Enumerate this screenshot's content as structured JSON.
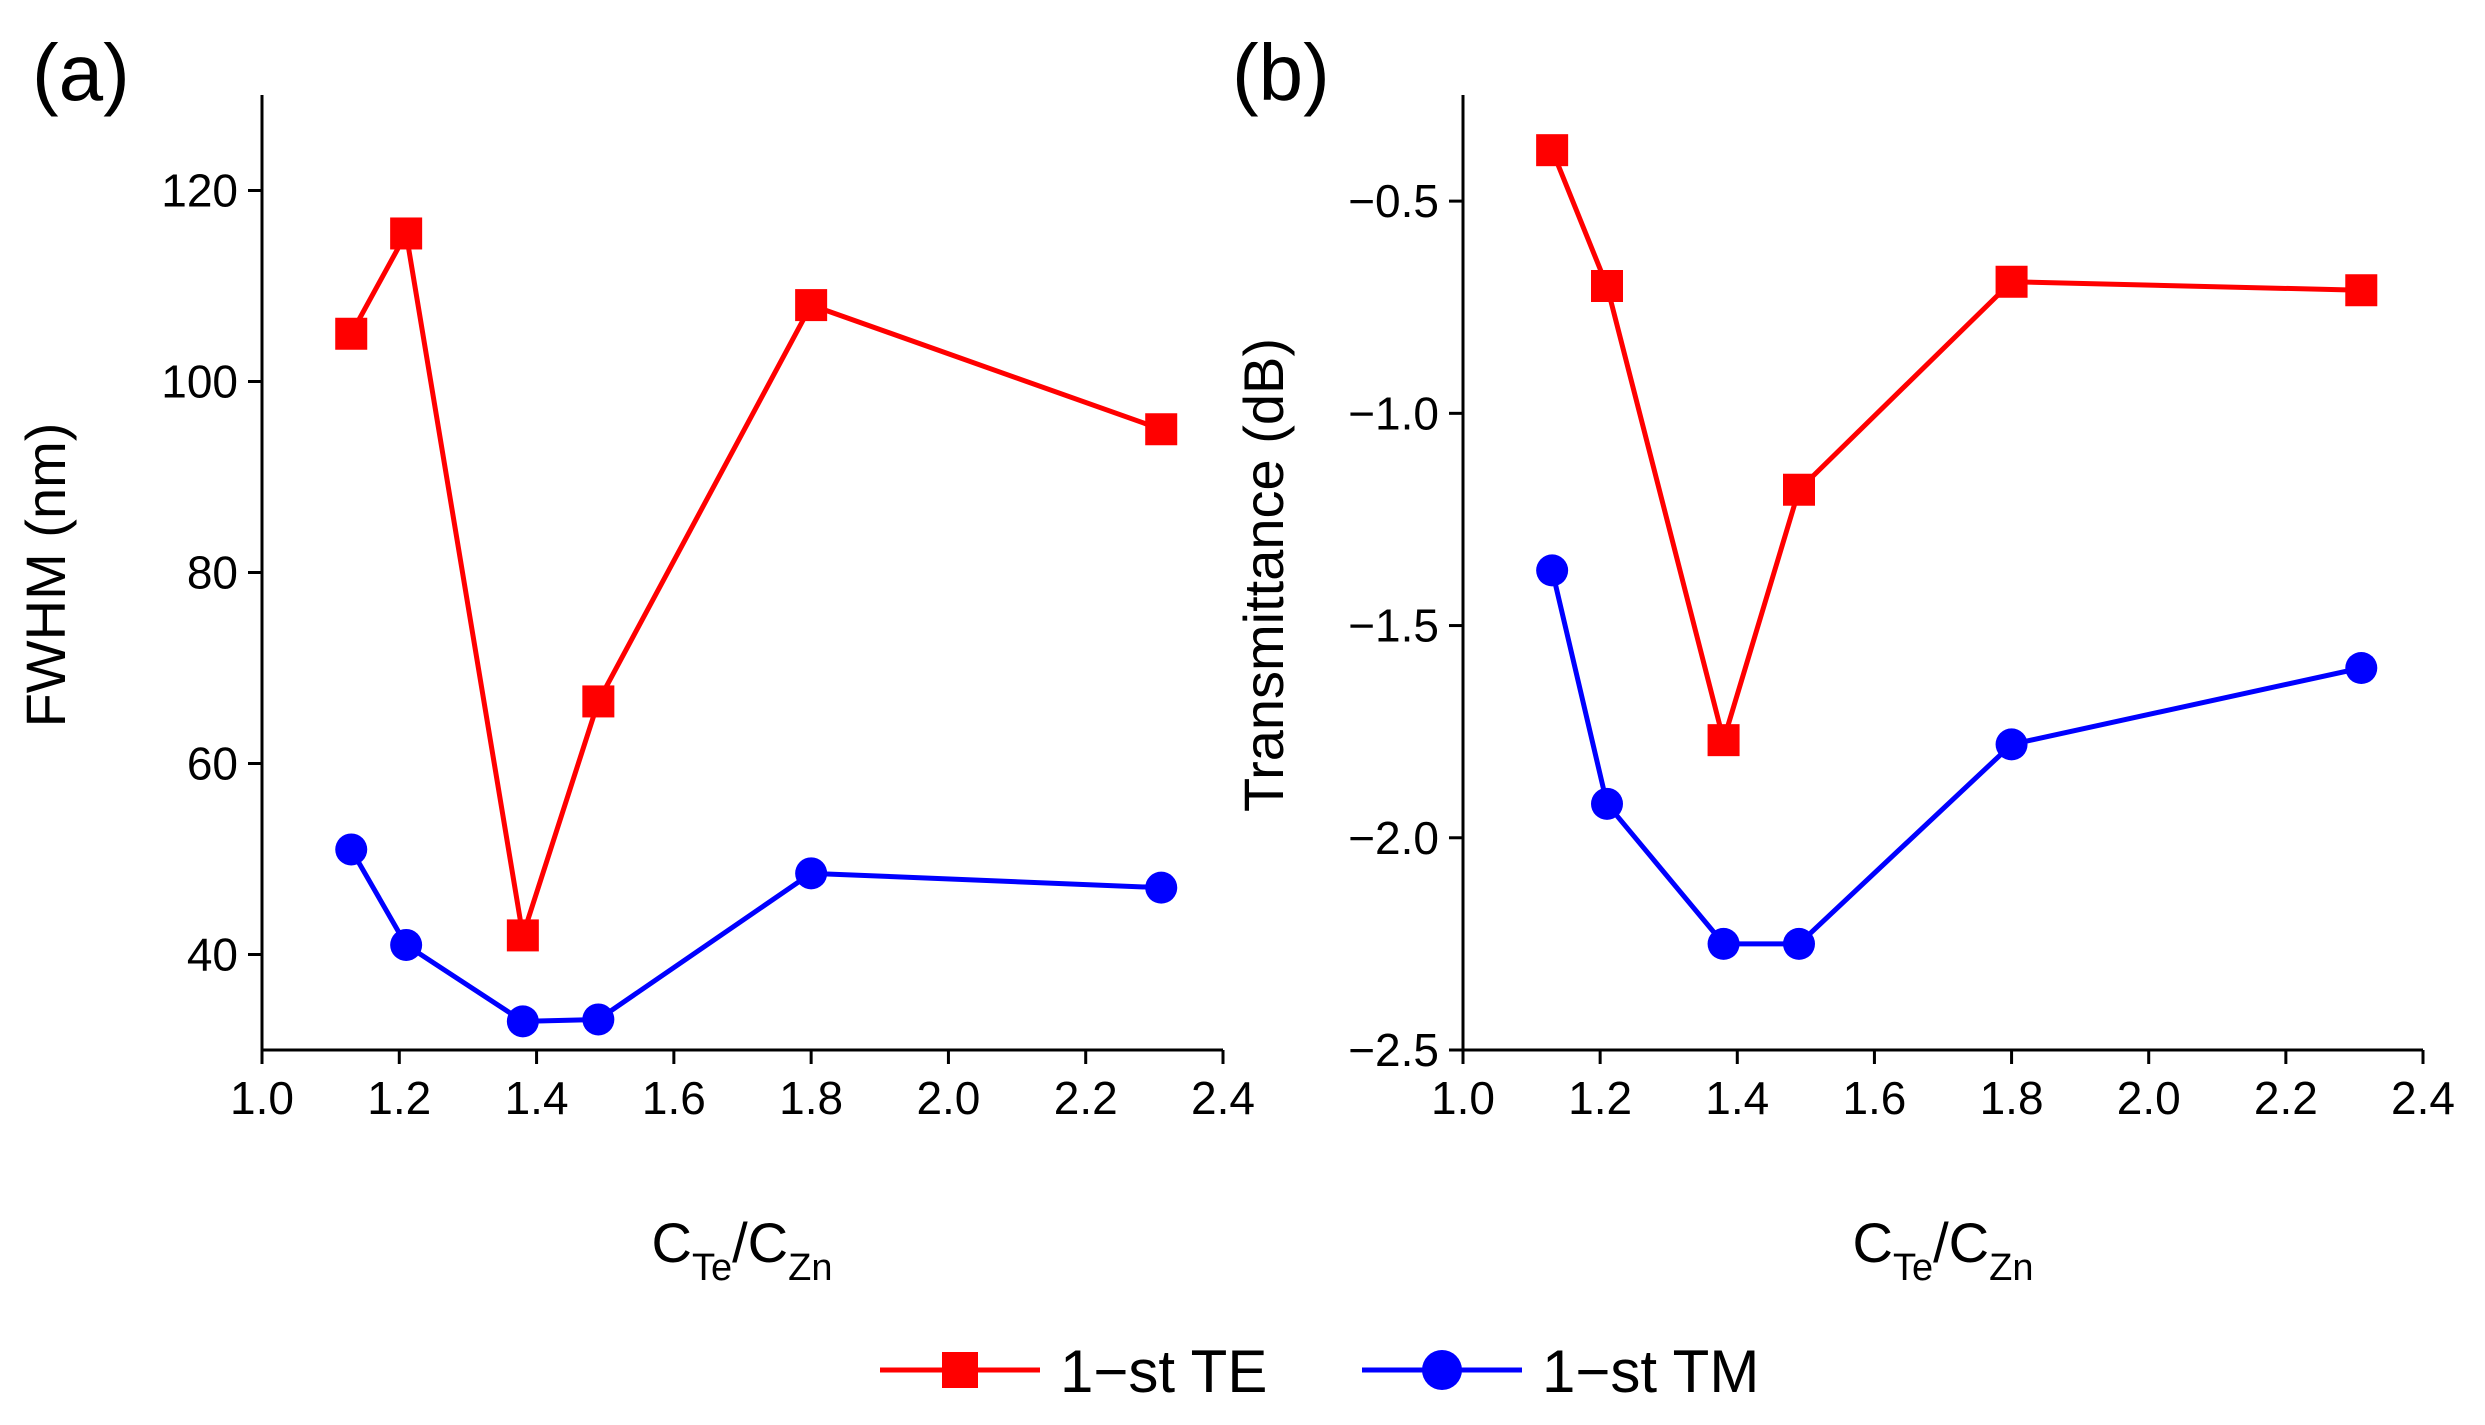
{
  "legend": [
    {
      "label": "1−st TE",
      "color": "#ff0000",
      "marker": "square"
    },
    {
      "label": "1−st TM",
      "color": "#0000ff",
      "marker": "circle"
    }
  ],
  "chart_data": [
    {
      "panel": "(a)",
      "type": "line",
      "xlabel_main": "C",
      "xlabel_sub1": "Te",
      "xlabel_slash": "/C",
      "xlabel_sub2": "Zn",
      "ylabel": "FWHM (nm)",
      "xlim": [
        1.0,
        2.4
      ],
      "ylim": [
        30,
        130
      ],
      "xticks": [
        1.0,
        1.2,
        1.4,
        1.6,
        1.8,
        2.0,
        2.2,
        2.4
      ],
      "xtick_labels": [
        "1.0",
        "1.2",
        "1.4",
        "1.6",
        "1.8",
        "2.0",
        "2.2",
        "2.4"
      ],
      "yticks": [
        40,
        60,
        80,
        100,
        120
      ],
      "ytick_labels": [
        "40",
        "60",
        "80",
        "100",
        "120"
      ],
      "x": [
        1.13,
        1.21,
        1.38,
        1.49,
        1.8,
        2.31
      ],
      "series": [
        {
          "name": "1−st TE",
          "color": "#ff0000",
          "marker": "square",
          "values": [
            105,
            115.5,
            42,
            66.5,
            108,
            95
          ]
        },
        {
          "name": "1−st TM",
          "color": "#0000ff",
          "marker": "circle",
          "values": [
            51,
            41,
            33,
            33.2,
            48.5,
            47
          ]
        }
      ]
    },
    {
      "panel": "(b)",
      "type": "line",
      "xlabel_main": "C",
      "xlabel_sub1": "Te",
      "xlabel_slash": "/C",
      "xlabel_sub2": "Zn",
      "ylabel": "Transmittance (dB)",
      "xlim": [
        1.0,
        2.4
      ],
      "ylim": [
        -2.5,
        -0.25
      ],
      "xticks": [
        1.0,
        1.2,
        1.4,
        1.6,
        1.8,
        2.0,
        2.2,
        2.4
      ],
      "xtick_labels": [
        "1.0",
        "1.2",
        "1.4",
        "1.6",
        "1.8",
        "2.0",
        "2.2",
        "2.4"
      ],
      "yticks": [
        -2.5,
        -2.0,
        -1.5,
        -1.0,
        -0.5
      ],
      "ytick_labels": [
        "−2.5",
        "−2.0",
        "−1.5",
        "−1.0",
        "−0.5"
      ],
      "x": [
        1.13,
        1.21,
        1.38,
        1.49,
        1.8,
        2.31
      ],
      "series": [
        {
          "name": "1−st TE",
          "color": "#ff0000",
          "marker": "square",
          "values": [
            -0.38,
            -0.7,
            -1.77,
            -1.18,
            -0.69,
            -0.71
          ]
        },
        {
          "name": "1−st TM",
          "color": "#0000ff",
          "marker": "circle",
          "values": [
            -1.37,
            -1.92,
            -2.25,
            -2.25,
            -1.78,
            -1.6
          ]
        }
      ]
    }
  ]
}
